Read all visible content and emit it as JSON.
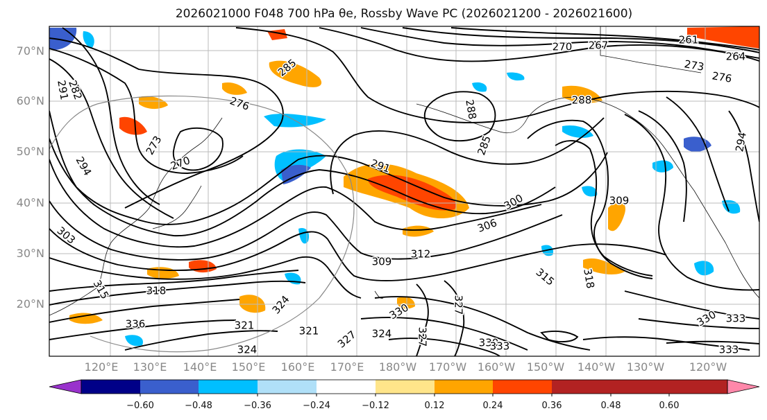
{
  "title": "2026021000 F048 700 hPa θe, Rossby Wave PC (2026021200 - 2026021600)",
  "map": {
    "projection": "PlateCarree",
    "field": "700 hPa theta-e (contours)",
    "shading": "Rossby Wave PC",
    "lat_labels": [
      "70°N",
      "60°N",
      "50°N",
      "40°N",
      "30°N",
      "20°N"
    ],
    "lon_labels": [
      "120°E",
      "130°E",
      "140°E",
      "150°E",
      "160°E",
      "170°E",
      "180°W",
      "170°W",
      "160°W",
      "150°W",
      "140°W",
      "130°W",
      "120°W"
    ],
    "contour_labels": [
      "261",
      "264",
      "267",
      "270",
      "270",
      "273",
      "273",
      "276",
      "276",
      "282",
      "285",
      "285",
      "288",
      "288",
      "291",
      "291",
      "294",
      "294",
      "300",
      "303",
      "306",
      "309",
      "309",
      "312",
      "315",
      "315",
      "318",
      "318",
      "321",
      "321",
      "324",
      "324",
      "324",
      "327",
      "327",
      "327",
      "330",
      "330",
      "330",
      "333",
      "333",
      "333",
      "336"
    ]
  },
  "colorbar": {
    "ticks": [
      "−0.60",
      "−0.48",
      "−0.36",
      "−0.24",
      "−0.12",
      "0.12",
      "0.24",
      "0.36",
      "0.48",
      "0.60"
    ],
    "colors": [
      "#9932cc",
      "#000088",
      "#3a5fcd",
      "#00bfff",
      "#b0e0f8",
      "#ffffff",
      "#ffe58a",
      "#ffa500",
      "#ff4500",
      "#b22222",
      "#ff88aa"
    ],
    "extend": "both"
  }
}
